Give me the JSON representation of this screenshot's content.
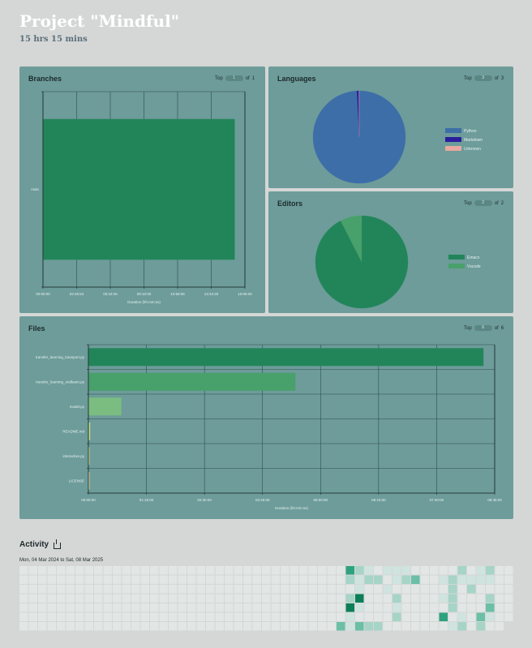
{
  "project": {
    "title": "Project \"Mindful\"",
    "duration": "15 hrs 15 mins"
  },
  "colors": {
    "accent": "#22855a",
    "panel": "#6d9c9a",
    "background": "#d5d7d6"
  },
  "branches": {
    "title": "Branches",
    "top_label": "Top",
    "top_value": "1",
    "of_label": "of",
    "of_value": "1",
    "chart_data": {
      "type": "bar",
      "orientation": "horizontal",
      "categories": [
        "main"
      ],
      "values": [
        14.5
      ],
      "value_unit": "hours",
      "xlim": [
        0,
        15.3
      ],
      "xticks": [
        "00:00:00",
        "02:46:53",
        "05:23:26",
        "08:10:00",
        "10:56:06",
        "13:43:20",
        "16:06:06"
      ],
      "xlabel": "Duration (hh:mm:ss)",
      "bar_colors": [
        "#22855a"
      ]
    }
  },
  "languages": {
    "title": "Languages",
    "top_label": "Top",
    "top_value": "3",
    "of_label": "of",
    "of_value": "3",
    "chart_data": {
      "type": "pie",
      "labels": [
        "Python",
        "Markdown",
        "Unknown"
      ],
      "values": [
        99.2,
        0.7,
        0.1
      ],
      "colors": [
        "#3d6ea8",
        "#2a1c9c",
        "#e8a9a0"
      ],
      "legend": "right"
    }
  },
  "editors": {
    "title": "Editors",
    "top_label": "Top",
    "top_value": "2",
    "of_label": "of",
    "of_value": "2",
    "chart_data": {
      "type": "pie",
      "labels": [
        "Emacs",
        "Vscode"
      ],
      "values": [
        92.5,
        7.5
      ],
      "colors": [
        "#22855a",
        "#48a06a"
      ],
      "legend": "right"
    }
  },
  "files": {
    "title": "Files",
    "top_label": "Top",
    "top_value": "6",
    "of_label": "of",
    "of_value": "6",
    "chart_data": {
      "type": "bar",
      "orientation": "horizontal",
      "categories": [
        "transfer_learning_transport.py",
        "transfer_learning_ondlearn.py",
        "model.py",
        "README.md",
        "interactive.py",
        "LICENSE"
      ],
      "values": [
        8.5,
        4.45,
        0.7,
        0.03,
        0.01,
        0.003
      ],
      "value_unit": "hours",
      "xlim": [
        0,
        8.75
      ],
      "xticks": [
        "00:00:00",
        "01:15:00",
        "02:30:00",
        "03:45:00",
        "05:00:00",
        "06:15:00",
        "07:30:00",
        "08:45:00"
      ],
      "xlabel": "Duration (hh:mm:ss)",
      "bar_colors": [
        "#22855a",
        "#48a06a",
        "#7bbd80",
        "#bfd98a",
        "#e4e48f",
        "#f4e7a0"
      ]
    }
  },
  "activity": {
    "title": "Activity",
    "range": "Mon, 04 Mar 2024 to Sat, 08 Mar 2025",
    "levels": [
      "#e2e6e5",
      "#cfe3df",
      "#a6d4c6",
      "#6bbfa6",
      "#2ea27e",
      "#0d7f58"
    ],
    "active_days": [
      {
        "week": 35,
        "day": 0,
        "level": 4
      },
      {
        "week": 36,
        "day": 0,
        "level": 2
      },
      {
        "week": 37,
        "day": 0,
        "level": 1
      },
      {
        "week": 39,
        "day": 0,
        "level": 1
      },
      {
        "week": 40,
        "day": 0,
        "level": 1
      },
      {
        "week": 41,
        "day": 0,
        "level": 1
      },
      {
        "week": 47,
        "day": 0,
        "level": 2
      },
      {
        "week": 49,
        "day": 0,
        "level": 1
      },
      {
        "week": 50,
        "day": 0,
        "level": 2
      },
      {
        "week": 35,
        "day": 1,
        "level": 2
      },
      {
        "week": 36,
        "day": 1,
        "level": 1
      },
      {
        "week": 37,
        "day": 1,
        "level": 2
      },
      {
        "week": 38,
        "day": 1,
        "level": 2
      },
      {
        "week": 40,
        "day": 1,
        "level": 1
      },
      {
        "week": 41,
        "day": 1,
        "level": 2
      },
      {
        "week": 42,
        "day": 1,
        "level": 3
      },
      {
        "week": 45,
        "day": 1,
        "level": 1
      },
      {
        "week": 46,
        "day": 1,
        "level": 2
      },
      {
        "week": 47,
        "day": 1,
        "level": 1
      },
      {
        "week": 48,
        "day": 1,
        "level": 1
      },
      {
        "week": 49,
        "day": 1,
        "level": 1
      },
      {
        "week": 50,
        "day": 1,
        "level": 1
      },
      {
        "week": 36,
        "day": 2,
        "level": 1
      },
      {
        "week": 39,
        "day": 2,
        "level": 1
      },
      {
        "week": 46,
        "day": 2,
        "level": 2
      },
      {
        "week": 48,
        "day": 2,
        "level": 2
      },
      {
        "week": 35,
        "day": 3,
        "level": 2
      },
      {
        "week": 36,
        "day": 3,
        "level": 5
      },
      {
        "week": 40,
        "day": 3,
        "level": 2
      },
      {
        "week": 45,
        "day": 3,
        "level": 1
      },
      {
        "week": 46,
        "day": 3,
        "level": 2
      },
      {
        "week": 50,
        "day": 3,
        "level": 2
      },
      {
        "week": 35,
        "day": 4,
        "level": 5
      },
      {
        "week": 36,
        "day": 4,
        "level": 1
      },
      {
        "week": 40,
        "day": 4,
        "level": 1
      },
      {
        "week": 46,
        "day": 4,
        "level": 2
      },
      {
        "week": 50,
        "day": 4,
        "level": 3
      },
      {
        "week": 35,
        "day": 5,
        "level": 1
      },
      {
        "week": 40,
        "day": 5,
        "level": 2
      },
      {
        "week": 45,
        "day": 5,
        "level": 4
      },
      {
        "week": 47,
        "day": 5,
        "level": 1
      },
      {
        "week": 49,
        "day": 5,
        "level": 3
      },
      {
        "week": 50,
        "day": 5,
        "level": 1
      },
      {
        "week": 34,
        "day": 6,
        "level": 3
      },
      {
        "week": 35,
        "day": 6,
        "level": 1
      },
      {
        "week": 36,
        "day": 6,
        "level": 3
      },
      {
        "week": 37,
        "day": 6,
        "level": 2
      },
      {
        "week": 38,
        "day": 6,
        "level": 2
      },
      {
        "week": 46,
        "day": 6,
        "level": 1
      },
      {
        "week": 47,
        "day": 6,
        "level": 2
      },
      {
        "week": 49,
        "day": 6,
        "level": 2
      }
    ],
    "legend_text": ""
  }
}
